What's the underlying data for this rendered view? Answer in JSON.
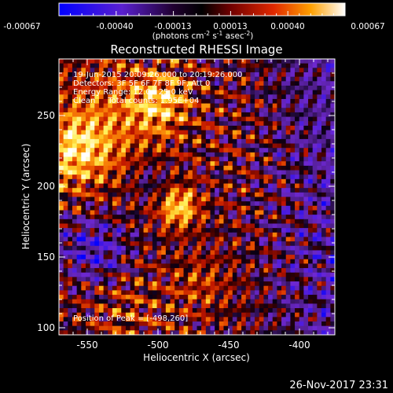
{
  "colorbar": {
    "ticks": [
      "-0.00067",
      "-0.00040",
      "-0.00013",
      "0.00013",
      "0.00040",
      "0.00067"
    ],
    "units": "(photons cm",
    "units_exp1": "-2",
    "units_mid": " s",
    "units_exp2": "-1",
    "units_tail": " asec",
    "units_exp3": "-2",
    "units_close": ")"
  },
  "title": "Reconstructed RHESSI Image",
  "annotations": {
    "time": "19-Jun-2015 20:09:26.000 to 20:19:26.000",
    "detectors": "Detectors: 3F 5F 6F 7F 8F 9F, Att 0",
    "energy": "Energy Range: 12.0 - 25.0 keV",
    "clean": "Clean     Total counts: 1.95E+04",
    "peak": "Position of Peak = [-498,260]"
  },
  "footer_date": "26-Nov-2017 23:31",
  "chart_data": {
    "type": "heatmap",
    "title": "Reconstructed RHESSI Image",
    "xlabel": "Heliocentric X (arcsec)",
    "ylabel": "Heliocentric Y (arcsec)",
    "xlim": [
      -570,
      -375
    ],
    "ylim": [
      95,
      290
    ],
    "x_ticks": [
      -550,
      -500,
      -450,
      -400
    ],
    "y_ticks": [
      100,
      150,
      200,
      250
    ],
    "x_tick_labels": [
      "-550",
      "-500",
      "-450",
      "-400"
    ],
    "y_tick_labels": [
      "100",
      "150",
      "200",
      "250"
    ],
    "colorbar_range": [
      -0.00067,
      0.00067
    ],
    "peak_position": [
      -498,
      260
    ],
    "colors": {
      "low": "#0000ff",
      "neg_mid": "#7030c0",
      "zero": "#000000",
      "pos_mid": "#e03000",
      "high": "#ffffff"
    }
  }
}
